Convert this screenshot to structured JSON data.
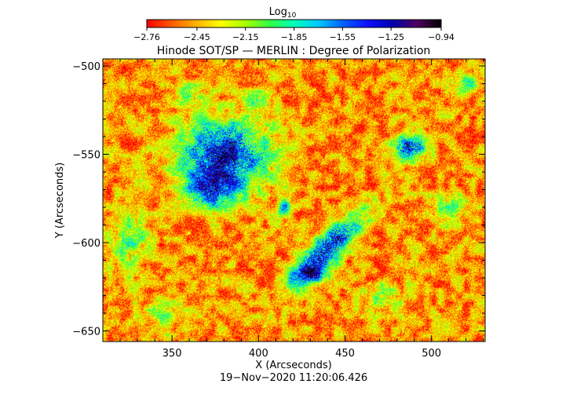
{
  "chart_data": {
    "type": "heatmap",
    "title": "Hinode SOT/SP — MERLIN : Degree of Polarization",
    "xlabel": "X (Arcseconds)",
    "ylabel": "Y (Arcseconds)",
    "timestamp": "19−Nov−2020 11:20:06.426",
    "xlim": [
      310,
      531
    ],
    "ylim": [
      -656,
      -496
    ],
    "x_ticks": [
      350,
      400,
      450,
      500
    ],
    "x_tick_labels": [
      "350",
      "400",
      "450",
      "500"
    ],
    "y_ticks": [
      -500,
      -550,
      -600,
      -650
    ],
    "y_tick_labels": [
      "−500",
      "−550",
      "−600",
      "−650"
    ],
    "colorbar": {
      "label": "Log",
      "label_subscript": "10",
      "range": [
        -2.76,
        -0.94
      ],
      "ticks": [
        -2.76,
        -2.45,
        -2.15,
        -1.85,
        -1.55,
        -1.25,
        -0.94
      ],
      "tick_labels": [
        "−2.76",
        "−2.45",
        "−2.15",
        "−1.85",
        "−1.55",
        "−1.25",
        "−0.94"
      ],
      "colors": [
        "#ff0000",
        "#ff5a00",
        "#ffb000",
        "#ffff00",
        "#aaff00",
        "#33ff44",
        "#00ffbb",
        "#00c8ff",
        "#0060ff",
        "#1010ff",
        "#0000b0",
        "#500060",
        "#000000"
      ]
    },
    "regions": [
      {
        "x": 380,
        "y": -550,
        "rx": 30,
        "ry": 22,
        "level": -1.2
      },
      {
        "x": 372,
        "y": -570,
        "rx": 18,
        "ry": 12,
        "level": -1.5
      },
      {
        "x": 440,
        "y": -603,
        "rx": 30,
        "ry": 9,
        "angle": -45,
        "level": -1.15
      },
      {
        "x": 430,
        "y": -618,
        "rx": 14,
        "ry": 6,
        "level": -1.6
      },
      {
        "x": 487,
        "y": -546,
        "rx": 11,
        "ry": 8,
        "level": -1.2
      },
      {
        "x": 400,
        "y": -520,
        "rx": 9,
        "ry": 7,
        "level": -1.95
      },
      {
        "x": 520,
        "y": -510,
        "rx": 10,
        "ry": 7,
        "level": -1.95
      },
      {
        "x": 325,
        "y": -600,
        "rx": 12,
        "ry": 20,
        "level": -2.0
      },
      {
        "x": 470,
        "y": -630,
        "rx": 16,
        "ry": 8,
        "level": -2.05
      },
      {
        "x": 510,
        "y": -580,
        "rx": 12,
        "ry": 10,
        "level": -2.0
      },
      {
        "x": 345,
        "y": -640,
        "rx": 14,
        "ry": 8,
        "level": -2.05
      },
      {
        "x": 360,
        "y": -515,
        "rx": 12,
        "ry": 8,
        "level": -2.05
      },
      {
        "x": 415,
        "y": -580,
        "rx": 5,
        "ry": 5,
        "level": -1.6
      }
    ],
    "grid": false,
    "legend": "none"
  }
}
